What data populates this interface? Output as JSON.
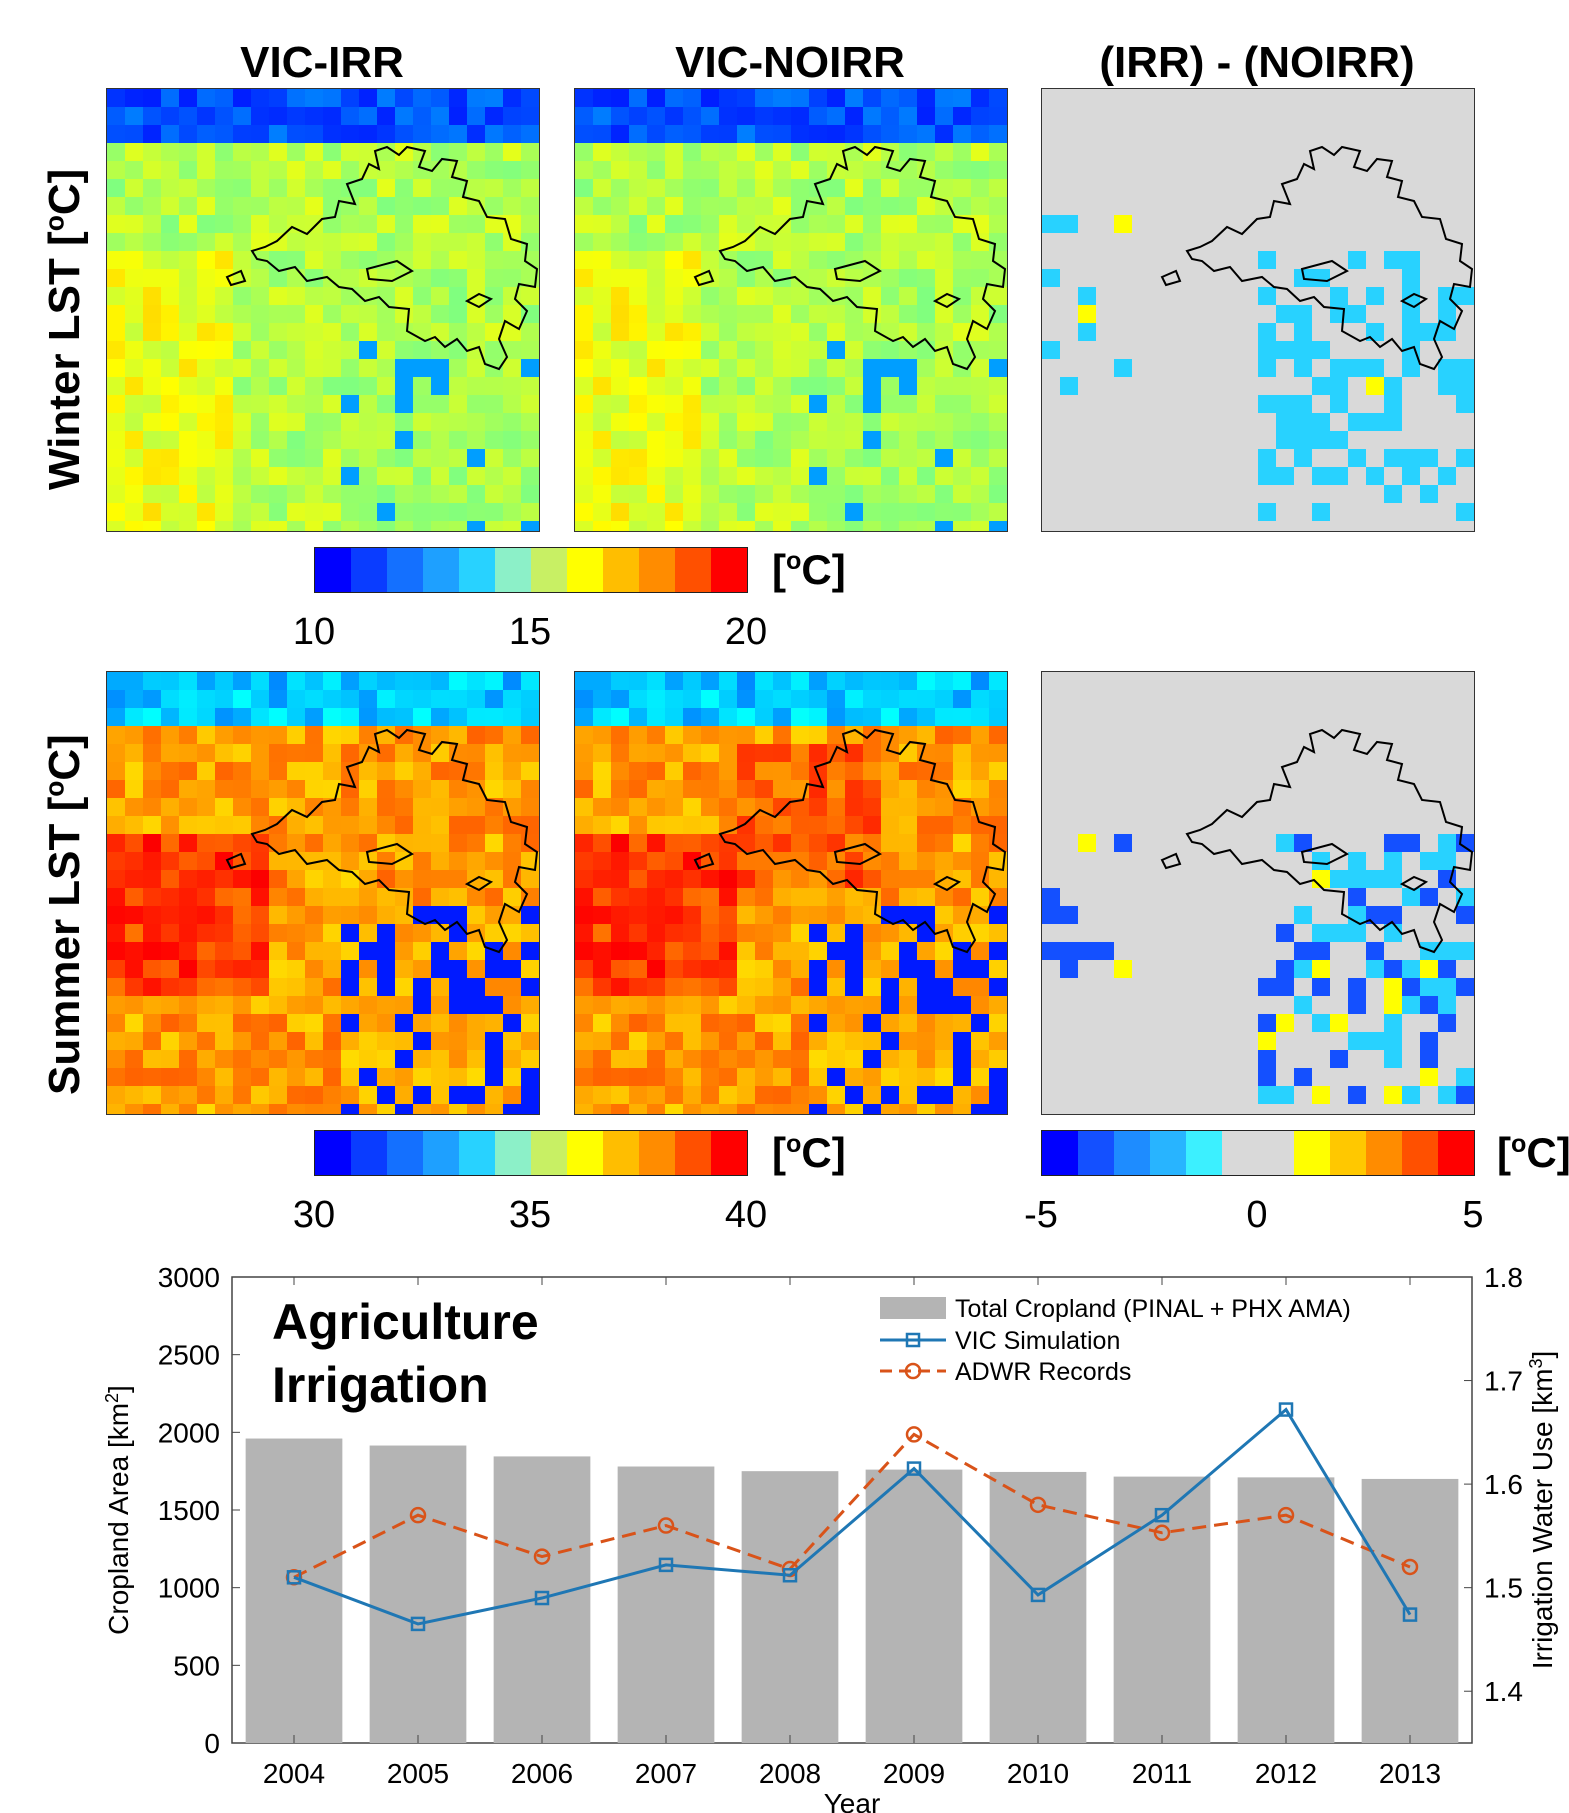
{
  "columns": [
    "VIC-IRR",
    "VIC-NOIRR",
    "(IRR) - (NOIRR)"
  ],
  "rows": [
    {
      "label_pre": "Winter LST [",
      "label_sup": "o",
      "label_post": "C]"
    },
    {
      "label_pre": "Summer LST [",
      "label_sup": "o",
      "label_post": "C]"
    }
  ],
  "colorbars": {
    "winter": {
      "ticks": [
        "10",
        "15",
        "20"
      ],
      "unit_pre": "[",
      "unit_sup": "o",
      "unit_post": "C]"
    },
    "summer": {
      "ticks": [
        "30",
        "35",
        "40"
      ],
      "unit_pre": "[",
      "unit_sup": "o",
      "unit_post": "C]"
    },
    "diff": {
      "ticks": [
        "-5",
        "0",
        "5"
      ],
      "unit_pre": "[",
      "unit_sup": "o",
      "unit_post": "C]"
    }
  },
  "colors": {
    "jet": [
      "#0000ff",
      "#0a3cff",
      "#1470ff",
      "#1ea0ff",
      "#28d2ff",
      "#8cf0c8",
      "#c8f064",
      "#ffff00",
      "#ffbe00",
      "#ff8c00",
      "#ff5000",
      "#ff0000"
    ],
    "diverging": [
      "#0000ff",
      "#1450ff",
      "#1e8cff",
      "#28b4ff",
      "#3cf0ff",
      "#d9d9d9",
      "#d9d9d9",
      "#ffff00",
      "#ffc800",
      "#ff8c00",
      "#ff5000",
      "#ff0000"
    ],
    "bars": "#b4b4b4",
    "vic": "#1f77b4",
    "adwr": "#d95319"
  },
  "chart_data": {
    "type": "bar",
    "title_line1": "Agriculture",
    "title_line2": "Irrigation",
    "xlabel": "Year",
    "ylabel_pre": "Cropland Area [km",
    "ylabel_sup": "2",
    "ylabel_post": "]",
    "y2label_pre": "Irrigation Water Use [km",
    "y2label_sup": "3",
    "y2label_post": "]",
    "categories": [
      "2004",
      "2005",
      "2006",
      "2007",
      "2008",
      "2009",
      "2010",
      "2011",
      "2012",
      "2013"
    ],
    "ylim": [
      0,
      3000
    ],
    "yticks": [
      "0",
      "500",
      "1000",
      "1500",
      "2000",
      "2500",
      "3000"
    ],
    "y2lim": [
      1.35,
      1.8
    ],
    "y2ticks": [
      "1.4",
      "1.5",
      "1.6",
      "1.7",
      "1.8"
    ],
    "series": [
      {
        "name": "Total Cropland (PINAL + PHX AMA)",
        "axis": "left",
        "kind": "bar",
        "values": [
          1960,
          1915,
          1845,
          1780,
          1750,
          1760,
          1745,
          1715,
          1710,
          1700
        ]
      },
      {
        "name": "VIC Simulation",
        "axis": "right",
        "kind": "line",
        "values": [
          1.51,
          1.465,
          1.49,
          1.522,
          1.512,
          1.615,
          1.493,
          1.57,
          1.672,
          1.474
        ]
      },
      {
        "name": "ADWR Records",
        "axis": "right",
        "kind": "line-dashed",
        "values": [
          1.51,
          1.57,
          1.53,
          1.56,
          1.518,
          1.648,
          1.58,
          1.553,
          1.57,
          1.52
        ]
      }
    ],
    "legend": "top-right"
  }
}
